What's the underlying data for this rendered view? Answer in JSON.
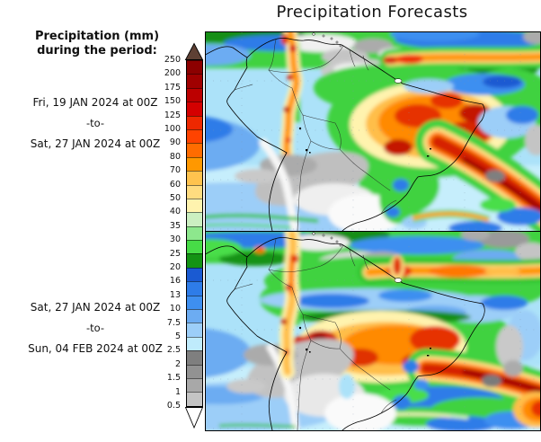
{
  "title": "Precipitation Forecasts",
  "sidebar": {
    "heading_line1": "Precipitation (mm)",
    "heading_line2": "during the period:",
    "periods": [
      {
        "from": "Fri, 19 JAN 2024 at 00Z",
        "separator": "-to-",
        "to": "Sat, 27 JAN 2024 at 00Z"
      },
      {
        "from": "Sat, 27 JAN 2024 at 00Z",
        "separator": "-to-",
        "to": "Sun, 04 FEB 2024 at 00Z"
      }
    ]
  },
  "colorbar": {
    "units": "mm",
    "overflow_color": "#5E4034",
    "underflow_color": "#FFFFFF",
    "bottom_label": "0.5",
    "bands": [
      {
        "label": "250",
        "color": "#8C0000"
      },
      {
        "label": "200",
        "color": "#A00000"
      },
      {
        "label": "175",
        "color": "#BC0000"
      },
      {
        "label": "150",
        "color": "#D40000"
      },
      {
        "label": "125",
        "color": "#EE2800"
      },
      {
        "label": "100",
        "color": "#FF4300"
      },
      {
        "label": "90",
        "color": "#FF6C00"
      },
      {
        "label": "80",
        "color": "#FF9800"
      },
      {
        "label": "70",
        "color": "#FFC34E"
      },
      {
        "label": "60",
        "color": "#FFDC80"
      },
      {
        "label": "50",
        "color": "#FFF3AE"
      },
      {
        "label": "40",
        "color": "#CBEFC1"
      },
      {
        "label": "35",
        "color": "#8DE78D"
      },
      {
        "label": "30",
        "color": "#47DC47"
      },
      {
        "label": "25",
        "color": "#149314"
      },
      {
        "label": "20",
        "color": "#1A5AD2"
      },
      {
        "label": "16",
        "color": "#2E7CE8"
      },
      {
        "label": "13",
        "color": "#3E8FF0"
      },
      {
        "label": "10",
        "color": "#6CACF2"
      },
      {
        "label": "7.5",
        "color": "#9CCEF8"
      },
      {
        "label": "5",
        "color": "#BFEBFC"
      },
      {
        "label": "2.5",
        "color": "#7F7F7F"
      },
      {
        "label": "2",
        "color": "#929292"
      },
      {
        "label": "1.5",
        "color": "#A8A8A8"
      },
      {
        "label": "1",
        "color": "#C4C4C4"
      }
    ]
  }
}
